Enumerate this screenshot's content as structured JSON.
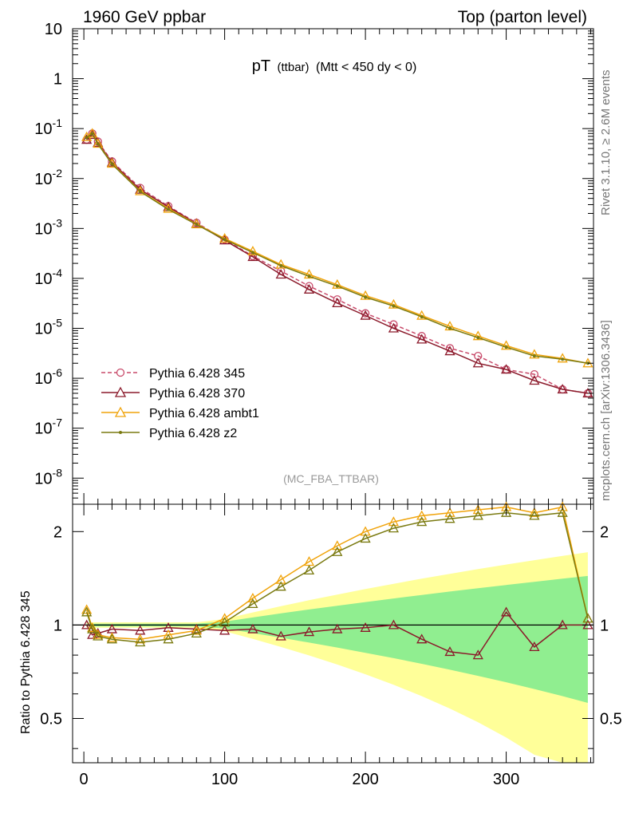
{
  "header": {
    "left": "1960 GeV ppbar",
    "right": "Top (parton level)"
  },
  "side_labels": {
    "rivet": "Rivet 3.1.10, ≥ 2.6M events",
    "mcplots": "mcplots.cern.ch [arXiv:1306.3436]"
  },
  "chart_data": [
    {
      "type": "line",
      "title": "pT",
      "title_sub": "(ttbar)",
      "title_cut": "(Mtt < 450 dy < 0)",
      "analysis_tag": "(MC_FBA_TTBAR)",
      "yscale": "log",
      "xlim": [
        -8,
        362
      ],
      "ylim": [
        3e-09,
        10
      ],
      "y_tick_labels": [
        "10",
        "1",
        "10^-1",
        "10^-2",
        "10^-3",
        "10^-4",
        "10^-5",
        "10^-6",
        "10^-7",
        "10^-8"
      ],
      "legend_position": "lower-left",
      "series": [
        {
          "name": "Pythia 6.428 345",
          "color": "#c84a6a",
          "marker": "circle-open",
          "dash": true,
          "x": [
            2,
            6,
            10,
            20,
            40,
            60,
            80,
            100,
            120,
            140,
            160,
            180,
            200,
            220,
            240,
            260,
            280,
            300,
            320,
            340,
            358
          ],
          "y": [
            0.06,
            0.08,
            0.055,
            0.022,
            0.0065,
            0.0028,
            0.0013,
            0.0006,
            0.00028,
            0.00014,
            7e-05,
            3.8e-05,
            2e-05,
            1.2e-05,
            7e-06,
            4e-06,
            2.8e-06,
            1.5e-06,
            1.2e-06,
            6e-07,
            5e-07
          ]
        },
        {
          "name": "Pythia 6.428 370",
          "color": "#8b1a2b",
          "marker": "triangle-open",
          "dash": false,
          "x": [
            2,
            6,
            10,
            20,
            40,
            60,
            80,
            100,
            120,
            140,
            160,
            180,
            200,
            220,
            240,
            260,
            280,
            300,
            320,
            340,
            358
          ],
          "y": [
            0.06,
            0.075,
            0.052,
            0.021,
            0.006,
            0.0027,
            0.00125,
            0.00058,
            0.00027,
            0.00012,
            6e-05,
            3.2e-05,
            1.8e-05,
            1e-05,
            6e-06,
            3.5e-06,
            2e-06,
            1.5e-06,
            9e-07,
            6e-07,
            5e-07
          ]
        },
        {
          "name": "Pythia 6.428 ambt1",
          "color": "#f0a30a",
          "marker": "triangle-open",
          "dash": false,
          "x": [
            2,
            6,
            10,
            20,
            40,
            60,
            80,
            100,
            120,
            140,
            160,
            180,
            200,
            220,
            240,
            260,
            280,
            300,
            320,
            340,
            358
          ],
          "y": [
            0.068,
            0.08,
            0.05,
            0.02,
            0.0056,
            0.0025,
            0.00122,
            0.00063,
            0.00035,
            0.00019,
            0.00012,
            7.5e-05,
            4.5e-05,
            3e-05,
            1.8e-05,
            1.1e-05,
            7e-06,
            4.5e-06,
            3e-06,
            2.5e-06,
            2e-06
          ]
        },
        {
          "name": "Pythia 6.428 z2",
          "color": "#7a7a10",
          "marker": "dot",
          "dash": false,
          "x": [
            2,
            6,
            10,
            20,
            40,
            60,
            80,
            100,
            120,
            140,
            160,
            180,
            200,
            220,
            240,
            260,
            280,
            300,
            320,
            340,
            358
          ],
          "y": [
            0.066,
            0.079,
            0.049,
            0.0195,
            0.0055,
            0.0024,
            0.0012,
            0.0006,
            0.00033,
            0.00018,
            0.00011,
            7e-05,
            4.2e-05,
            2.8e-05,
            1.7e-05,
            1e-05,
            6.5e-06,
            4.2e-06,
            2.8e-06,
            2.4e-06,
            2e-06
          ]
        }
      ]
    },
    {
      "type": "line",
      "ylabel": "Ratio to Pythia 6.428 345",
      "yscale": "log",
      "xlim": [
        -8,
        362
      ],
      "ylim": [
        0.36,
        2.45
      ],
      "x_tick_labels": [
        "0",
        "100",
        "200",
        "300"
      ],
      "y_tick_labels": [
        "0.5",
        "1",
        "2"
      ],
      "reference_line": 1,
      "band_colors": {
        "inner": "#90ee90",
        "outer": "#ffff99"
      },
      "series": [
        {
          "name": "Pythia 6.428 370",
          "color": "#8b1a2b",
          "x": [
            2,
            6,
            10,
            20,
            40,
            60,
            80,
            100,
            120,
            140,
            160,
            180,
            200,
            220,
            240,
            260,
            280,
            300,
            320,
            340,
            358
          ],
          "y": [
            1.0,
            0.93,
            0.94,
            0.97,
            0.96,
            0.98,
            0.97,
            0.96,
            0.97,
            0.92,
            0.95,
            0.97,
            0.98,
            1.0,
            0.9,
            0.82,
            0.8,
            1.1,
            0.85,
            1.0,
            1.0
          ]
        },
        {
          "name": "Pythia 6.428 ambt1",
          "color": "#f0a30a",
          "x": [
            2,
            6,
            10,
            20,
            40,
            60,
            80,
            100,
            120,
            140,
            160,
            180,
            200,
            220,
            240,
            260,
            280,
            300,
            320,
            340,
            358
          ],
          "y": [
            1.12,
            0.98,
            0.93,
            0.91,
            0.9,
            0.93,
            0.96,
            1.05,
            1.22,
            1.4,
            1.6,
            1.8,
            2.0,
            2.15,
            2.25,
            2.3,
            2.35,
            2.4,
            2.3,
            2.4,
            1.05
          ]
        },
        {
          "name": "Pythia 6.428 z2",
          "color": "#7a7a10",
          "x": [
            2,
            6,
            10,
            20,
            40,
            60,
            80,
            100,
            120,
            140,
            160,
            180,
            200,
            220,
            240,
            260,
            280,
            300,
            320,
            340,
            358
          ],
          "y": [
            1.1,
            0.97,
            0.92,
            0.9,
            0.88,
            0.9,
            0.94,
            1.02,
            1.17,
            1.33,
            1.5,
            1.72,
            1.9,
            2.05,
            2.15,
            2.2,
            2.25,
            2.3,
            2.25,
            2.3,
            1.05
          ]
        }
      ]
    }
  ]
}
